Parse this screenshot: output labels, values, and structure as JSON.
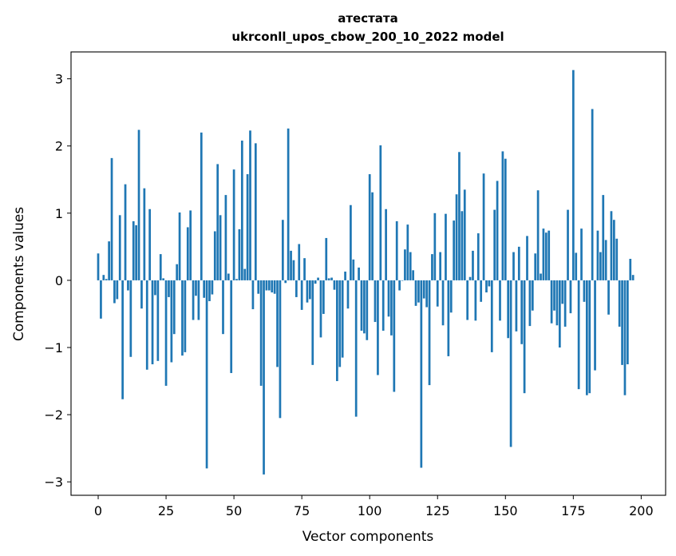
{
  "chart_data": {
    "type": "bar",
    "title_line1": "атестата",
    "title_line2": "ukrconll_upos_cbow_200_10_2022 model",
    "xlabel": "Vector components",
    "ylabel": "Components values",
    "xlim": [
      -10,
      209
    ],
    "ylim": [
      -3.2,
      3.4
    ],
    "xticks": [
      0,
      25,
      50,
      75,
      100,
      125,
      150,
      175,
      200
    ],
    "yticks": [
      -3,
      -2,
      -1,
      0,
      1,
      2,
      3
    ],
    "ytick_labels": [
      "−3",
      "−2",
      "−1",
      "0",
      "1",
      "2",
      "3"
    ],
    "bar_color": "#1f77b4",
    "grid": false,
    "values": [
      0.4,
      -0.57,
      0.08,
      0.02,
      0.58,
      1.82,
      -0.34,
      -0.28,
      0.97,
      -1.77,
      1.43,
      -0.15,
      -1.14,
      0.88,
      0.82,
      2.24,
      -0.42,
      1.37,
      -1.33,
      1.06,
      -1.25,
      -0.22,
      -1.2,
      0.39,
      0.03,
      -1.57,
      -0.25,
      -1.22,
      -0.8,
      0.24,
      1.01,
      -1.12,
      -1.07,
      0.79,
      1.04,
      -0.59,
      -0.23,
      -0.59,
      2.2,
      -0.26,
      -2.8,
      -0.31,
      -0.21,
      0.73,
      1.73,
      0.97,
      -0.8,
      1.27,
      0.1,
      -1.38,
      1.65,
      0.02,
      0.76,
      2.08,
      0.17,
      1.58,
      2.23,
      -0.43,
      2.04,
      -0.2,
      -1.57,
      -2.89,
      -0.15,
      -0.15,
      -0.18,
      -0.2,
      -1.29,
      -2.05,
      0.9,
      -0.04,
      2.26,
      0.44,
      0.3,
      -0.25,
      0.54,
      -0.44,
      0.33,
      -0.33,
      -0.28,
      -1.26,
      -0.05,
      0.04,
      -0.85,
      -0.5,
      0.63,
      0.03,
      0.04,
      -0.14,
      -1.5,
      -1.29,
      -1.15,
      0.13,
      -0.42,
      1.12,
      0.31,
      -2.03,
      0.19,
      -0.75,
      -0.79,
      -0.89,
      1.58,
      1.31,
      -0.62,
      -1.41,
      2.01,
      -0.75,
      1.06,
      -0.54,
      -0.82,
      -1.66,
      0.88,
      -0.15,
      0.0,
      0.46,
      0.83,
      0.42,
      0.15,
      -0.38,
      -0.33,
      -2.79,
      -0.27,
      -0.4,
      -1.56,
      0.39,
      1.0,
      -0.39,
      0.42,
      -0.67,
      0.99,
      -1.13,
      -0.48,
      0.89,
      1.28,
      1.91,
      1.03,
      1.35,
      -0.59,
      0.05,
      0.44,
      -0.6,
      0.7,
      -0.32,
      1.59,
      -0.18,
      -0.09,
      -1.07,
      1.05,
      1.48,
      -0.6,
      1.92,
      1.81,
      -0.86,
      -2.48,
      0.42,
      -0.76,
      0.5,
      -0.95,
      -1.68,
      0.66,
      -0.68,
      -0.45,
      0.4,
      1.34,
      0.1,
      0.77,
      0.71,
      0.74,
      -0.64,
      -0.45,
      -0.67,
      -1.0,
      -0.35,
      -0.69,
      1.05,
      -0.49,
      3.13,
      0.41,
      -1.62,
      0.77,
      -0.32,
      -1.71,
      -1.68,
      2.55,
      -1.34,
      0.74,
      0.42,
      1.27,
      0.6,
      -0.51,
      1.03,
      0.9,
      0.62,
      -0.69,
      -1.26,
      -1.71,
      -1.25,
      0.32,
      0.08
    ]
  }
}
